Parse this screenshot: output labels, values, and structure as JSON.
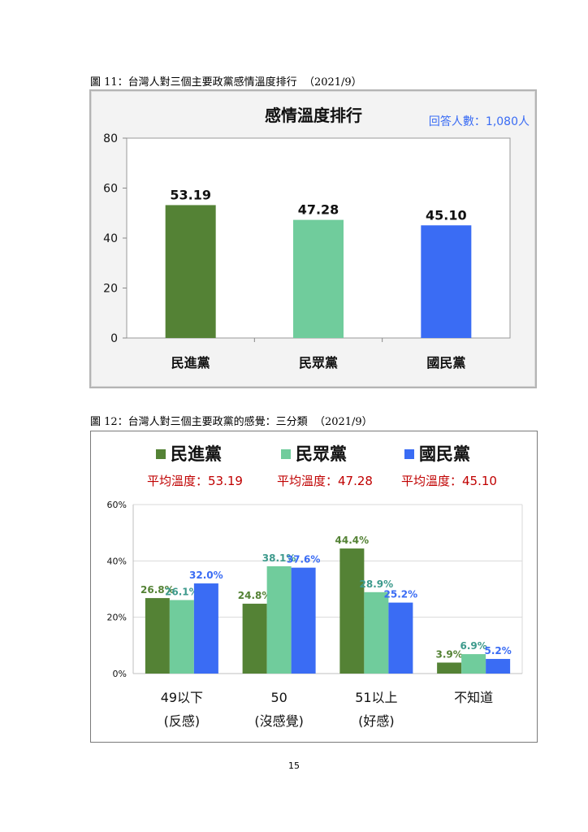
{
  "captions": {
    "fig1": "圖 11：台灣人對三個主要政黨感情溫度排行  （2021/9）",
    "fig2": "圖 12：台灣人對三個主要政黨的感覺：三分類  （2021/9）"
  },
  "page_number": "15",
  "chart_data": [
    {
      "type": "bar",
      "title": "感情溫度排行",
      "note": "回答人數：1,080人",
      "categories": [
        "民進黨",
        "民眾黨",
        "國民黨"
      ],
      "values": [
        53.19,
        47.28,
        45.1
      ],
      "value_labels": [
        "53.19",
        "47.28",
        "45.10"
      ],
      "colors": [
        "#548235",
        "#70cc9c",
        "#3a6cf4"
      ],
      "ylim": [
        0,
        80
      ],
      "yticks": [
        "0",
        "20",
        "40",
        "60",
        "80"
      ],
      "grid": false,
      "xlabel": "",
      "ylabel": ""
    },
    {
      "type": "bar",
      "legend": [
        {
          "name": "民進黨",
          "color": "#548235"
        },
        {
          "name": "民眾黨",
          "color": "#70cc9c"
        },
        {
          "name": "國民黨",
          "color": "#3a6cf4"
        }
      ],
      "legend_placement": "top",
      "subtitles": [
        "平均溫度：53.19",
        "平均溫度：47.28",
        "平均溫度：45.10"
      ],
      "subtitle_color": "#c00000",
      "categories": [
        {
          "line1": "49以下",
          "line2": "(反感)"
        },
        {
          "line1": "50",
          "line2": "(沒感覺)"
        },
        {
          "line1": "51以上",
          "line2": "(好感)"
        },
        {
          "line1": "不知道",
          "line2": ""
        }
      ],
      "series": [
        {
          "name": "民進黨",
          "color": "#548235",
          "label_color": "#548235",
          "values": [
            26.8,
            24.8,
            44.4,
            3.9
          ],
          "labels": [
            "26.8%",
            "24.8%",
            "44.4%",
            "3.9%"
          ]
        },
        {
          "name": "民眾黨",
          "color": "#70cc9c",
          "label_color": "#3d9a8c",
          "values": [
            26.1,
            38.1,
            28.9,
            6.9
          ],
          "labels": [
            "26.1%",
            "38.1%",
            "28.9%",
            "6.9%"
          ]
        },
        {
          "name": "國民黨",
          "color": "#3a6cf4",
          "label_color": "#3a6cf4",
          "values": [
            32.0,
            37.6,
            25.2,
            5.2
          ],
          "labels": [
            "32.0%",
            "37.6%",
            "25.2%",
            "5.2%"
          ]
        }
      ],
      "ylim": [
        0,
        60
      ],
      "yticks": [
        "0%",
        "20%",
        "40%",
        "60%"
      ],
      "grid": true,
      "xlabel": "",
      "ylabel": ""
    }
  ]
}
